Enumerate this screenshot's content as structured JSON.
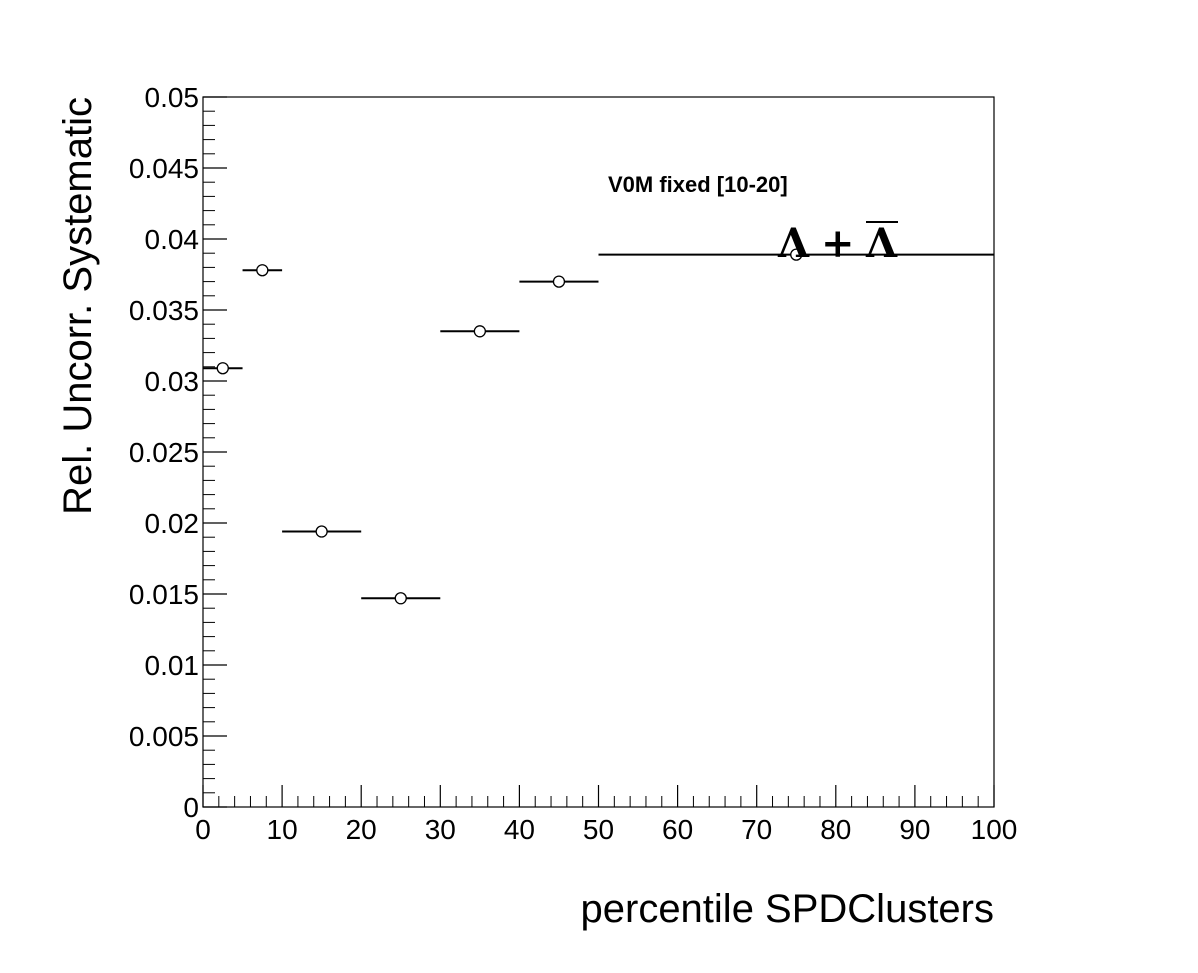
{
  "chart_data": {
    "type": "scatter",
    "title": "",
    "xlabel": "percentile SPDClusters",
    "ylabel": "Rel. Uncorr. Systematic",
    "xlim": [
      0,
      100
    ],
    "ylim": [
      0,
      0.05
    ],
    "x_ticks": [
      "0",
      "10",
      "20",
      "30",
      "40",
      "50",
      "60",
      "70",
      "80",
      "90",
      "100"
    ],
    "y_ticks": [
      "0",
      "0.005",
      "0.01",
      "0.015",
      "0.02",
      "0.025",
      "0.03",
      "0.035",
      "0.04",
      "0.045",
      "0.05"
    ],
    "grid": false,
    "points": [
      {
        "x": 2.5,
        "y": 0.0309,
        "xlow": 0,
        "xhigh": 5
      },
      {
        "x": 7.5,
        "y": 0.0378,
        "xlow": 5,
        "xhigh": 10
      },
      {
        "x": 15,
        "y": 0.0194,
        "xlow": 10,
        "xhigh": 20
      },
      {
        "x": 25,
        "y": 0.0147,
        "xlow": 20,
        "xhigh": 30
      },
      {
        "x": 35,
        "y": 0.0335,
        "xlow": 30,
        "xhigh": 40
      },
      {
        "x": 45,
        "y": 0.037,
        "xlow": 40,
        "xhigh": 50
      },
      {
        "x": 75,
        "y": 0.0389,
        "xlow": 50,
        "xhigh": 100
      }
    ],
    "annotations": {
      "selection": "V0M fixed [10-20]",
      "particle_left": "Λ",
      "particle_plus": "+",
      "particle_right": "Λ"
    },
    "marker_style": "open-circle"
  }
}
